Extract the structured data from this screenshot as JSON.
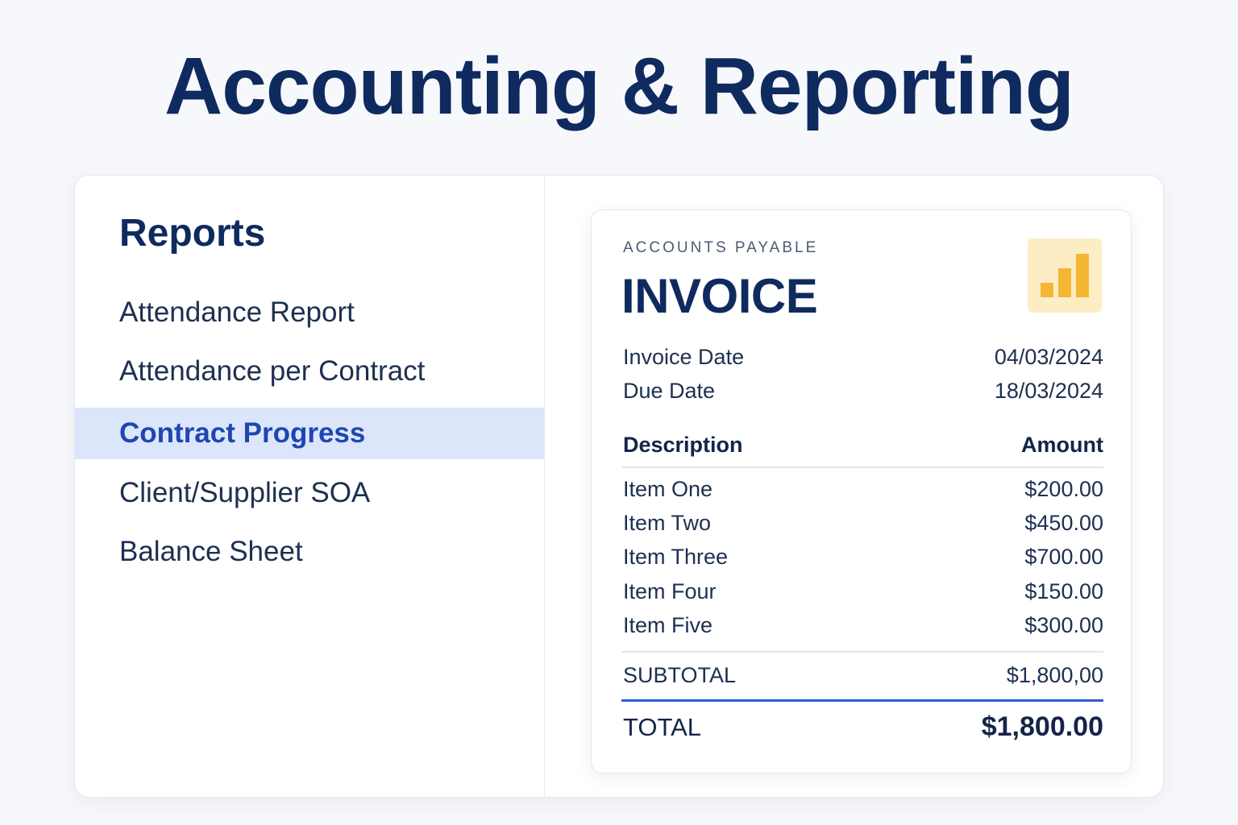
{
  "page": {
    "title": "Accounting & Reporting"
  },
  "sidebar": {
    "heading": "Reports",
    "items": [
      {
        "label": "Attendance Report",
        "active": false
      },
      {
        "label": "Attendance per Contract",
        "active": false
      },
      {
        "label": "Contract Progress",
        "active": true
      },
      {
        "label": "Client/Supplier SOA",
        "active": false
      },
      {
        "label": "Balance Sheet",
        "active": false
      }
    ]
  },
  "invoice": {
    "category": "ACCOUNTS PAYABLE",
    "title": "INVOICE",
    "icon": "bar-chart-icon",
    "invoice_date_label": "Invoice Date",
    "invoice_date": "04/03/2024",
    "due_date_label": "Due Date",
    "due_date": "18/03/2024",
    "columns": {
      "description": "Description",
      "amount": "Amount"
    },
    "items": [
      {
        "description": "Item One",
        "amount": "$200.00"
      },
      {
        "description": "Item Two",
        "amount": "$450.00"
      },
      {
        "description": "Item Three",
        "amount": "$700.00"
      },
      {
        "description": "Item Four",
        "amount": "$150.00"
      },
      {
        "description": "Item Five",
        "amount": "$300.00"
      }
    ],
    "subtotal_label": "SUBTOTAL",
    "subtotal": "$1,800,00",
    "total_label": "TOTAL",
    "total": "$1,800.00"
  },
  "colors": {
    "accent": "#1f46b0",
    "active_bg": "#dce6fb",
    "title": "#0f2a5e",
    "icon_bg": "#fdedc4",
    "icon_bars": "#f5b633"
  }
}
